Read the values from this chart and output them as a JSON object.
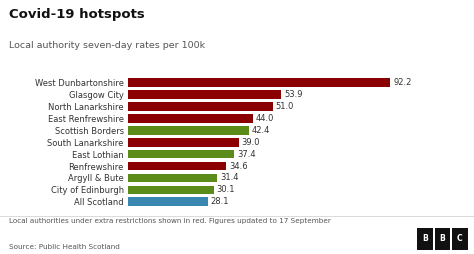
{
  "title": "Covid-19 hotspots",
  "subtitle": "Local authority seven-day rates per 100k",
  "footer": "Local authorities under extra restrictions shown in red. Figures updated to 17 September",
  "source": "Source: Public Health Scotland",
  "categories": [
    "All Scotland",
    "City of Edinburgh",
    "Argyll & Bute",
    "Renfrewshire",
    "East Lothian",
    "South Lanarkshire",
    "Scottish Borders",
    "East Renfrewshire",
    "North Lanarkshire",
    "Glasgow City",
    "West Dunbartonshire"
  ],
  "values": [
    28.1,
    30.1,
    31.4,
    34.6,
    37.4,
    39.0,
    42.4,
    44.0,
    51.0,
    53.9,
    92.2
  ],
  "colors": [
    "#3a87b0",
    "#5b8c1a",
    "#5b8c1a",
    "#8b0000",
    "#5b8c1a",
    "#8b0000",
    "#5b8c1a",
    "#8b0000",
    "#8b0000",
    "#8b0000",
    "#8b0000"
  ],
  "xlim": [
    0,
    100
  ],
  "bg_color": "#ffffff",
  "bar_height": 0.72,
  "title_fontsize": 9.5,
  "subtitle_fontsize": 6.8,
  "label_fontsize": 6.0,
  "value_fontsize": 6.0,
  "footer_fontsize": 5.2,
  "xtick_values": [
    0,
    20,
    40,
    60,
    80,
    100
  ]
}
